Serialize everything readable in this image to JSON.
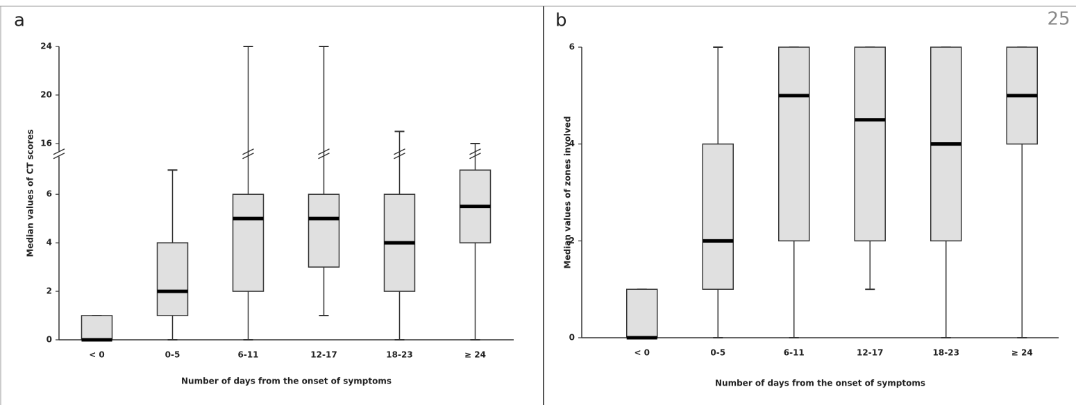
{
  "page_number": "25",
  "chart_data": [
    {
      "type": "box",
      "label": "a",
      "xlabel": "Number of days from the onset of symptoms",
      "ylabel": "Median values of CT scores",
      "categories": [
        "< 0",
        "0-5",
        "6-11",
        "12-17",
        "18-23",
        "≥ 24"
      ],
      "boxes": [
        {
          "min": 0,
          "q1": 0,
          "median": 0,
          "q3": 1,
          "max": 1
        },
        {
          "min": 0,
          "q1": 1,
          "median": 2,
          "q3": 4,
          "max": 7
        },
        {
          "min": 0,
          "q1": 2,
          "median": 5,
          "q3": 6,
          "max": 24
        },
        {
          "min": 1,
          "q1": 3,
          "median": 5,
          "q3": 6,
          "max": 24
        },
        {
          "min": 0,
          "q1": 2,
          "median": 4,
          "q3": 6,
          "max": 17
        },
        {
          "min": 0,
          "q1": 4,
          "median": 5.5,
          "q3": 7,
          "max": 16
        }
      ],
      "color": "#e0e0e0",
      "ylim": [
        0,
        24
      ],
      "y_break": [
        7.5,
        15.5
      ],
      "yticks": [
        0,
        2,
        4,
        6,
        16,
        20,
        24
      ]
    },
    {
      "type": "box",
      "label": "b",
      "xlabel": "Number of days from the onset of symptoms",
      "ylabel": "Median values of zones involved",
      "categories": [
        "< 0",
        "0-5",
        "6-11",
        "12-17",
        "18-23",
        "≥ 24"
      ],
      "boxes": [
        {
          "min": 0,
          "q1": 0,
          "median": 0,
          "q3": 1,
          "max": 1
        },
        {
          "min": 0,
          "q1": 1,
          "median": 2,
          "q3": 4,
          "max": 6
        },
        {
          "min": 0,
          "q1": 2,
          "median": 5,
          "q3": 6,
          "max": 6
        },
        {
          "min": 1,
          "q1": 2,
          "median": 4.5,
          "q3": 6,
          "max": 6
        },
        {
          "min": 0,
          "q1": 2,
          "median": 4,
          "q3": 6,
          "max": 6
        },
        {
          "min": 0,
          "q1": 4,
          "median": 5,
          "q3": 6,
          "max": 6
        }
      ],
      "color": "#e0e0e0",
      "ylim": [
        0,
        6
      ],
      "yticks": [
        0,
        2,
        4,
        6
      ]
    }
  ]
}
